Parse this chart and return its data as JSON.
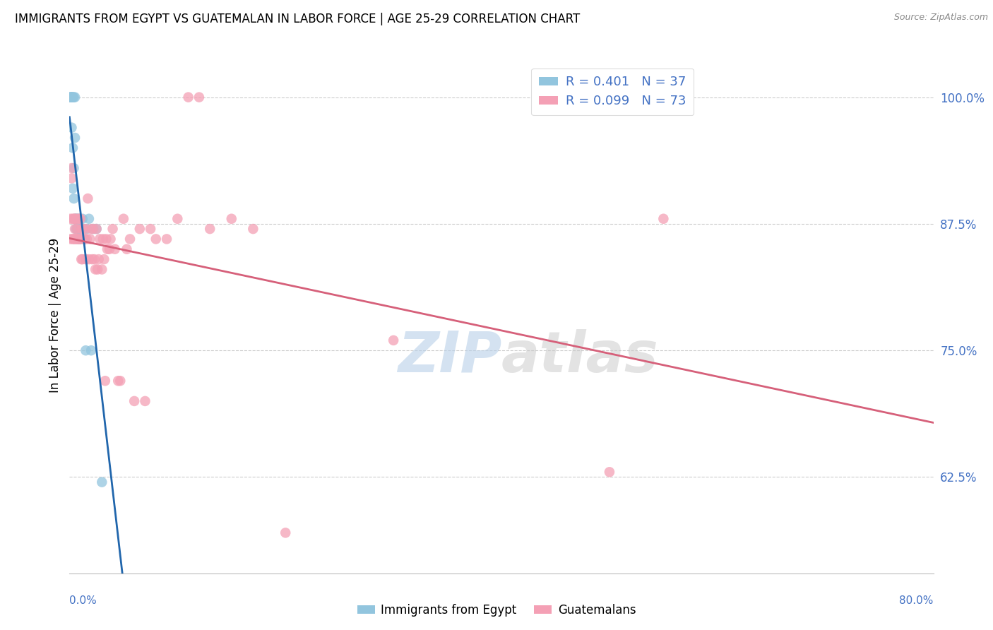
{
  "title": "IMMIGRANTS FROM EGYPT VS GUATEMALAN IN LABOR FORCE | AGE 25-29 CORRELATION CHART",
  "source": "Source: ZipAtlas.com",
  "ylabel": "In Labor Force | Age 25-29",
  "yticks": [
    0.625,
    0.75,
    0.875,
    1.0
  ],
  "ytick_labels": [
    "62.5%",
    "75.0%",
    "87.5%",
    "100.0%"
  ],
  "xlim": [
    0.0,
    0.8
  ],
  "ylim": [
    0.53,
    1.04
  ],
  "legend_egypt": "R = 0.401   N = 37",
  "legend_guatemalan": "R = 0.099   N = 73",
  "egypt_color": "#92c5de",
  "guatemalan_color": "#f4a0b5",
  "trendline_egypt_color": "#2166ac",
  "trendline_guatemalan_color": "#d6607a",
  "watermark_zip": "ZIP",
  "watermark_atlas": "atlas",
  "egypt_x": [
    0.001,
    0.001,
    0.001,
    0.002,
    0.002,
    0.002,
    0.003,
    0.003,
    0.003,
    0.003,
    0.004,
    0.004,
    0.004,
    0.005,
    0.005,
    0.005,
    0.006,
    0.006,
    0.007,
    0.007,
    0.008,
    0.008,
    0.009,
    0.009,
    0.01,
    0.01,
    0.011,
    0.012,
    0.013,
    0.014,
    0.015,
    0.016,
    0.018,
    0.02,
    0.022,
    0.025,
    0.03
  ],
  "egypt_y": [
    1.0,
    1.0,
    1.0,
    1.0,
    1.0,
    0.97,
    1.0,
    1.0,
    0.95,
    0.91,
    1.0,
    0.93,
    0.9,
    1.0,
    0.96,
    0.88,
    0.88,
    0.87,
    0.88,
    0.87,
    0.88,
    0.86,
    0.87,
    0.86,
    0.87,
    0.86,
    0.87,
    0.88,
    0.87,
    0.86,
    0.75,
    0.87,
    0.88,
    0.75,
    0.87,
    0.87,
    0.62
  ],
  "guatemalan_x": [
    0.001,
    0.001,
    0.002,
    0.002,
    0.003,
    0.003,
    0.004,
    0.004,
    0.005,
    0.005,
    0.005,
    0.006,
    0.006,
    0.007,
    0.007,
    0.008,
    0.008,
    0.009,
    0.009,
    0.01,
    0.01,
    0.011,
    0.011,
    0.012,
    0.012,
    0.013,
    0.014,
    0.015,
    0.015,
    0.016,
    0.017,
    0.018,
    0.019,
    0.02,
    0.021,
    0.022,
    0.023,
    0.024,
    0.025,
    0.026,
    0.027,
    0.028,
    0.03,
    0.031,
    0.032,
    0.033,
    0.034,
    0.035,
    0.037,
    0.038,
    0.04,
    0.042,
    0.045,
    0.047,
    0.05,
    0.053,
    0.056,
    0.06,
    0.065,
    0.07,
    0.075,
    0.08,
    0.09,
    0.1,
    0.11,
    0.12,
    0.13,
    0.15,
    0.17,
    0.2,
    0.3,
    0.5,
    0.55
  ],
  "guatemalan_y": [
    0.88,
    0.86,
    0.93,
    0.92,
    0.88,
    0.86,
    0.88,
    0.86,
    0.88,
    0.87,
    0.86,
    0.88,
    0.86,
    0.87,
    0.86,
    0.88,
    0.86,
    0.88,
    0.86,
    0.88,
    0.86,
    0.87,
    0.84,
    0.87,
    0.84,
    0.86,
    0.86,
    0.87,
    0.84,
    0.86,
    0.9,
    0.84,
    0.86,
    0.87,
    0.84,
    0.87,
    0.84,
    0.83,
    0.87,
    0.83,
    0.84,
    0.86,
    0.83,
    0.86,
    0.84,
    0.72,
    0.86,
    0.85,
    0.85,
    0.86,
    0.87,
    0.85,
    0.72,
    0.72,
    0.88,
    0.85,
    0.86,
    0.7,
    0.87,
    0.7,
    0.87,
    0.86,
    0.86,
    0.88,
    1.0,
    1.0,
    0.87,
    0.88,
    0.87,
    0.57,
    0.76,
    0.63,
    0.88
  ]
}
